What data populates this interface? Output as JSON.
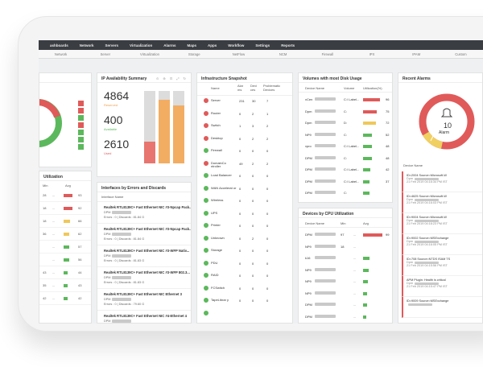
{
  "nav": {
    "top": [
      "ashboards",
      "Network",
      "Servers",
      "Virtualization",
      "Alarms",
      "Maps",
      "Apps",
      "Workflow",
      "Settings",
      "Reports"
    ],
    "sub": [
      "Network",
      "Server",
      "Virtualization",
      "Storage",
      "NetFlow",
      "NCM",
      "Firewall",
      "IPX",
      "IPAM",
      "Custom"
    ]
  },
  "left_panel": {
    "title": "Utilization",
    "headers": [
      "Min",
      "Avg"
    ],
    "rows": [
      {
        "value": "28",
        "avg": "93",
        "color": "#e05a5a",
        "pct": 0.93
      },
      {
        "value": "18",
        "avg": "92",
        "color": "#e05a5a",
        "pct": 0.92
      },
      {
        "value": "18",
        "avg": "66",
        "color": "#f0c85a",
        "pct": 0.66
      },
      {
        "value": "36",
        "avg": "62",
        "color": "#f0c85a",
        "pct": 0.62
      },
      {
        "value": "",
        "avg": "57",
        "color": "#5cb85c",
        "pct": 0.57
      },
      {
        "value": "",
        "avg": "56",
        "color": "#5cb85c",
        "pct": 0.56
      },
      {
        "value": "43",
        "avg": "44",
        "color": "#5cb85c",
        "pct": 0.44
      },
      {
        "value": "35",
        "avg": "43",
        "color": "#5cb85c",
        "pct": 0.43
      },
      {
        "value": "42",
        "avg": "42",
        "color": "#5cb85c",
        "pct": 0.42
      }
    ]
  },
  "ip_panel": {
    "title": "IP Availability Summary",
    "tools": "⊙ ⊕ ⊡ ⤢ ↻",
    "stats": [
      {
        "value": "4864",
        "label": "Reserved",
        "color": "#f0a050"
      },
      {
        "value": "400",
        "label": "Available",
        "color": "#5cb85c"
      },
      {
        "value": "2610",
        "label": "Used",
        "color": "#e05a5a"
      }
    ],
    "bars": [
      {
        "used": 0.3,
        "reserved": 0.0
      },
      {
        "used": 0.0,
        "reserved": 0.88
      },
      {
        "used": 0.0,
        "reserved": 0.8
      }
    ]
  },
  "interfaces_panel": {
    "title": "Interfaces by Errors and Discards",
    "col": "Interface Name",
    "rows": [
      {
        "name": "Realtek RTL8139C+ Fast Ethernet NIC #3-Npcap Pack...",
        "device": "DPM",
        "stats": "Errors : 0 | Discards : 81.84 G"
      },
      {
        "name": "Realtek RTL8139C+ Fast Ethernet NIC #3-Npcap Pack...",
        "device": "DPM",
        "stats": "Errors : 0 | Discards : 81.84 G"
      },
      {
        "name": "Realtek RTL8139C+ Fast Ethernet NIC #3-WFP Nativ...",
        "device": "DPM",
        "stats": "Errors : 0 | Discards : 81.83 G"
      },
      {
        "name": "Realtek RTL8139C+ Fast Ethernet NIC #3-WFP 802.3...",
        "device": "DPM",
        "stats": "Errors : 0 | Discards : 81.83 G"
      },
      {
        "name": "Realtek RTL8139C+ Fast Ethernet NIC Ethernet 3",
        "device": "DPM",
        "stats": "Errors : 0 | Discards : 79.60 G"
      },
      {
        "name": "Realtek RTL8139C+ Fast Ethernet NIC #4-Ethernet 4",
        "device": "DPM",
        "stats": ""
      }
    ]
  },
  "infra_panel": {
    "title": "Infrastructure Snapshot",
    "headers": [
      "Name",
      "Alar ms",
      "Devi ces",
      "Problematic Devices"
    ],
    "rows": [
      {
        "name": "Server",
        "alarms": "231",
        "devices": "30",
        "problem": "7",
        "status": "#e05a5a"
      },
      {
        "name": "Router",
        "alarms": "0",
        "devices": "2",
        "problem": "1",
        "status": "#e05a5a"
      },
      {
        "name": "Switch",
        "alarms": "1",
        "devices": "3",
        "problem": "2",
        "status": "#e05a5a"
      },
      {
        "name": "Desktop",
        "alarms": "0",
        "devices": "2",
        "problem": "2",
        "status": "#e05a5a"
      },
      {
        "name": "Firewall",
        "alarms": "0",
        "devices": "0",
        "problem": "0",
        "status": "#5cb85c"
      },
      {
        "name": "DomainCo ntroller",
        "alarms": "49",
        "devices": "2",
        "problem": "2",
        "status": "#e05a5a"
      },
      {
        "name": "Load Balancer",
        "alarms": "0",
        "devices": "0",
        "problem": "0",
        "status": "#5cb85c"
      },
      {
        "name": "WAN Accelerat or",
        "alarms": "0",
        "devices": "0",
        "problem": "0",
        "status": "#5cb85c"
      },
      {
        "name": "Wireless",
        "alarms": "0",
        "devices": "0",
        "problem": "0",
        "status": "#5cb85c"
      },
      {
        "name": "UPS",
        "alarms": "0",
        "devices": "0",
        "problem": "0",
        "status": "#5cb85c"
      },
      {
        "name": "Printer",
        "alarms": "0",
        "devices": "0",
        "problem": "0",
        "status": "#5cb85c"
      },
      {
        "name": "Unknown",
        "alarms": "0",
        "devices": "2",
        "problem": "0",
        "status": "#5cb85c"
      },
      {
        "name": "Storage",
        "alarms": "0",
        "devices": "0",
        "problem": "0",
        "status": "#5cb85c"
      },
      {
        "name": "PDU",
        "alarms": "0",
        "devices": "0",
        "problem": "0",
        "status": "#5cb85c"
      },
      {
        "name": "RAID",
        "alarms": "0",
        "devices": "0",
        "problem": "0",
        "status": "#5cb85c"
      },
      {
        "name": "FCSwitch",
        "alarms": "0",
        "devices": "0",
        "problem": "0",
        "status": "#5cb85c"
      },
      {
        "name": "TapeLibrar y",
        "alarms": "0",
        "devices": "0",
        "problem": "0",
        "status": "#5cb85c"
      },
      {
        "name": "",
        "alarms": "",
        "devices": "",
        "problem": "",
        "status": "#5cb85c"
      }
    ]
  },
  "volumes_panel": {
    "title": "Volumes with most Disk Usage",
    "headers": [
      "Device Name",
      "Volume",
      "Utilization(%)"
    ],
    "rows": [
      {
        "device": "vCen",
        "volume": "C:\\ Label...",
        "pct": "96",
        "p": 0.96,
        "color": "#e05a5a"
      },
      {
        "device": "Dpm",
        "volume": "C:",
        "pct": "75",
        "p": 0.75,
        "color": "#e05a5a"
      },
      {
        "device": "Dpm",
        "volume": "D:",
        "pct": "72",
        "p": 0.72,
        "color": "#f0c85a"
      },
      {
        "device": "NP9",
        "volume": "C:",
        "pct": "52",
        "p": 0.52,
        "color": "#5cb85c"
      },
      {
        "device": "vpro",
        "volume": "C:\\ Label...",
        "pct": "48",
        "p": 0.48,
        "color": "#5cb85c"
      },
      {
        "device": "DPM",
        "volume": "C:",
        "pct": "48",
        "p": 0.48,
        "color": "#5cb85c"
      },
      {
        "device": "DPM",
        "volume": "C:\\ Label...",
        "pct": "42",
        "p": 0.42,
        "color": "#5cb85c"
      },
      {
        "device": "DPM",
        "volume": "C:\\ Label...",
        "pct": "37",
        "p": 0.37,
        "color": "#5cb85c"
      },
      {
        "device": "DPM",
        "volume": "C:",
        "pct": "",
        "p": 0.35,
        "color": "#5cb85c"
      }
    ]
  },
  "cpu_panel": {
    "title": "Devices by CPU Utilization",
    "headers": [
      "Device Name",
      "Min",
      "Avg"
    ],
    "rows": [
      {
        "device": "DPM",
        "min": "97",
        "avg": "99",
        "p": 0.99,
        "color": "#e05a5a"
      },
      {
        "device": "NP9",
        "min": "18",
        "avg": "",
        "p": 0.0,
        "color": "#e05a5a"
      },
      {
        "device": "k16",
        "min": "",
        "avg": "",
        "p": 0.34,
        "color": "#5cb85c"
      },
      {
        "device": "NP9",
        "min": "",
        "avg": "",
        "p": 0.28,
        "color": "#5cb85c"
      },
      {
        "device": "NP9",
        "min": "",
        "avg": "",
        "p": 0.25,
        "color": "#5cb85c"
      },
      {
        "device": "NP9",
        "min": "",
        "avg": "",
        "p": 0.22,
        "color": "#5cb85c"
      },
      {
        "device": "DPM",
        "min": "",
        "avg": "",
        "p": 0.2,
        "color": "#5cb85c"
      },
      {
        "device": "DPM",
        "min": "",
        "avg": "",
        "p": 0.18,
        "color": "#5cb85c"
      }
    ]
  },
  "alarms_panel": {
    "title": "Recent Alarms",
    "donut_value": "10",
    "donut_label": "Alarm",
    "col": "Device Name",
    "rows": [
      {
        "line1": "ID=2004 Source=Microsoft-W",
        "line2": "Dpm",
        "line3": "21 Feb 2019 04:16:34 PM IST"
      },
      {
        "line1": "ID=4625 Source=Microsoft-W",
        "line2": "Dpm",
        "line3": "21 Feb 2019 04:16:03 PM IST"
      },
      {
        "line1": "ID=9004 Source=Microsoft-W",
        "line2": "Dpm",
        "line3": "21 Feb 2019 04:16:23 PM IST"
      },
      {
        "line1": "ID=9002 Source=MSExchange",
        "line2": "Dpm",
        "line3": "21 Feb 2019 04:16:05 PM IST"
      },
      {
        "line1": "ID=708 Source=NTDS ISAM TS",
        "line2": "Dpm",
        "line3": "21 Feb 2019 04:15:56 PM IST"
      },
      {
        "line1": "APM Plugin: Health is critical",
        "line2": "Dpm",
        "line3": "21 Feb 2019 04:15:47 PM IST"
      },
      {
        "line1": "ID=9009 Source=MSExchange",
        "line2": "",
        "line3": ""
      }
    ]
  }
}
